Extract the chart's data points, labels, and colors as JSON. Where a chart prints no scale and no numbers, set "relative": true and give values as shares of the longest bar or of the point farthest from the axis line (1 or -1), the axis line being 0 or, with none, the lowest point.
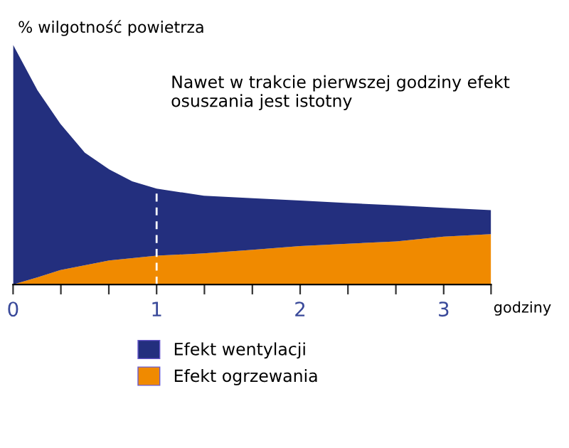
{
  "chart_data": {
    "type": "area",
    "relative": true,
    "stacked": true,
    "ylabel": "% wilgotność powietrza",
    "xlabel": "godziny",
    "annotations": [
      "Nawet w trakcie pierwszej godziny efekt osuszania jest istotny"
    ],
    "x": [
      0,
      0.17,
      0.33,
      0.5,
      0.67,
      0.83,
      1,
      1.33,
      1.67,
      2,
      2.33,
      2.67,
      3,
      3.33
    ],
    "series": [
      {
        "name": "Efekt ogrzewania",
        "color": "#f08a00",
        "values": [
          0,
          0.03,
          0.06,
          0.08,
          0.1,
          0.11,
          0.12,
          0.13,
          0.145,
          0.16,
          0.17,
          0.18,
          0.2,
          0.21
        ]
      },
      {
        "name": "Efekt wentylacji",
        "color": "#232f7e",
        "values": [
          1.0,
          0.78,
          0.61,
          0.47,
          0.38,
          0.32,
          0.28,
          0.24,
          0.215,
          0.19,
          0.17,
          0.15,
          0.12,
          0.1
        ]
      }
    ],
    "xlim": [
      0,
      3.33
    ],
    "xticks": [
      0,
      {
        "value": 0.333,
        "label": null
      },
      {
        "value": 0.667,
        "label": null
      },
      1,
      {
        "value": 1.333,
        "label": null
      },
      {
        "value": 1.667,
        "label": null
      },
      2,
      {
        "value": 2.333,
        "label": null
      },
      {
        "value": 2.667,
        "label": null
      },
      3,
      {
        "value": 3.33,
        "label": null
      }
    ],
    "ref_lines": [
      {
        "axis": "x",
        "value": 1,
        "label": null,
        "color": "#ffffff",
        "line_style": "dashed"
      }
    ],
    "legend": "bottom",
    "grid": false
  }
}
